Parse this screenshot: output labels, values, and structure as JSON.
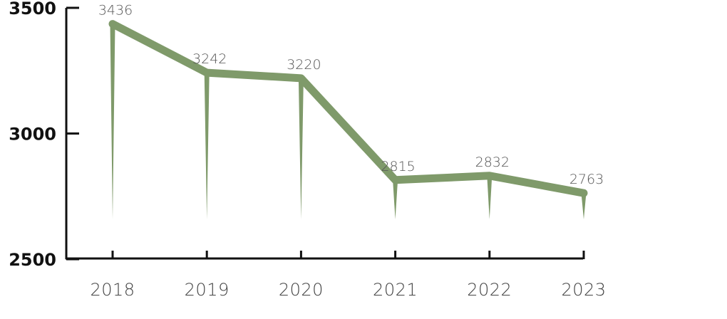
{
  "chart_data": {
    "type": "line",
    "categories": [
      "2018",
      "2019",
      "2020",
      "2021",
      "2022",
      "2023"
    ],
    "series": [
      {
        "values": [
          3436,
          3242,
          3220,
          2815,
          2832,
          2763
        ]
      }
    ],
    "ylim": [
      2500,
      3500
    ],
    "yticks": [
      2500,
      3000,
      3500
    ],
    "ytick_labels": [
      "2500",
      "3000",
      "3500"
    ],
    "data_labels": [
      "3436",
      "3242",
      "3220",
      "2815",
      "2832",
      "2763"
    ],
    "title": "",
    "xlabel": "",
    "ylabel": "",
    "grid": false,
    "color": "#7f9a6a",
    "axis_color": "#111111"
  }
}
